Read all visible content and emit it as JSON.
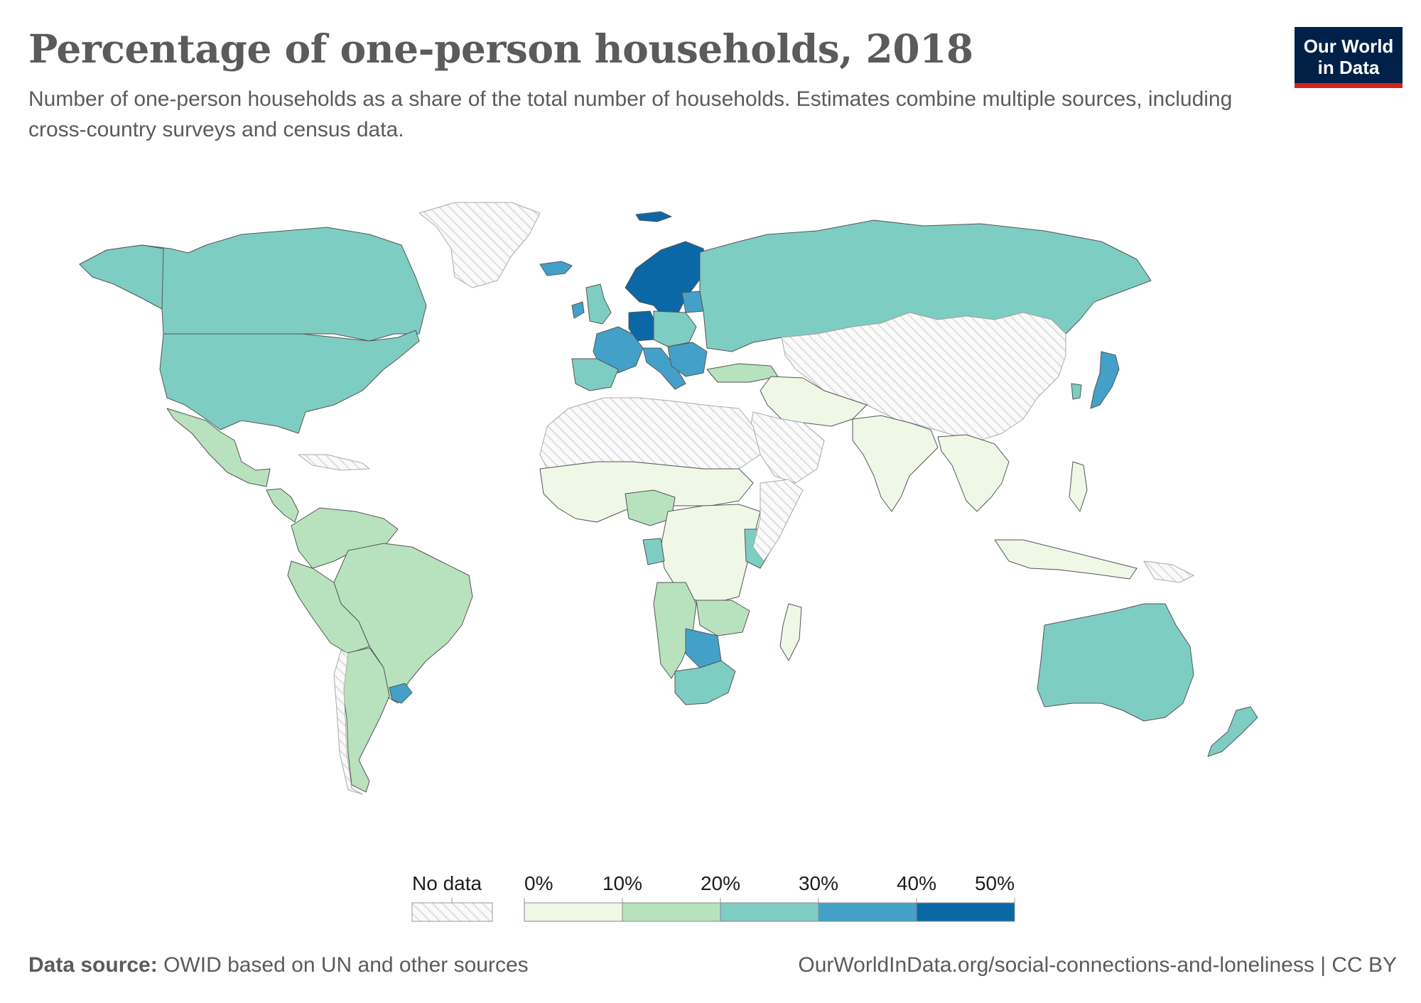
{
  "title": "Percentage of one-person households, 2018",
  "subtitle": "Number of one-person households as a share of the total number of households. Estimates combine multiple sources, including cross-country surveys and census data.",
  "logo": {
    "line1": "Our World",
    "line2": "in Data"
  },
  "legend": {
    "no_data_label": "No data",
    "ticks": [
      "0%",
      "10%",
      "20%",
      "30%",
      "40%",
      "50%"
    ],
    "bin_colors": [
      "#eff7e6",
      "#b7e2bd",
      "#7dcdc3",
      "#43a1c9",
      "#0a68a6"
    ],
    "no_data_color": "#ececec"
  },
  "footer": {
    "source_label": "Data source:",
    "source_text": "OWID based on UN and other sources",
    "url_text": "OurWorldInData.org/social-connections-and-loneliness",
    "license_text": "| CC BY"
  },
  "chart_data": {
    "type": "choropleth",
    "year": 2018,
    "unit": "%",
    "bins": [
      [
        0,
        10
      ],
      [
        10,
        20
      ],
      [
        20,
        30
      ],
      [
        30,
        40
      ],
      [
        40,
        50
      ]
    ],
    "regions": [
      {
        "name": "Canada",
        "bin": 2
      },
      {
        "name": "United States",
        "bin": 2
      },
      {
        "name": "Alaska",
        "bin": 2
      },
      {
        "name": "Greenland",
        "bin": null
      },
      {
        "name": "Mexico",
        "bin": 1
      },
      {
        "name": "Central America",
        "bin": 1
      },
      {
        "name": "Caribbean",
        "bin": null
      },
      {
        "name": "Colombia/Venezuela",
        "bin": 1
      },
      {
        "name": "Brazil",
        "bin": 1
      },
      {
        "name": "Peru/Bolivia",
        "bin": 1
      },
      {
        "name": "Argentina",
        "bin": 1
      },
      {
        "name": "Chile",
        "bin": null
      },
      {
        "name": "Uruguay",
        "bin": 3
      },
      {
        "name": "Iceland",
        "bin": 3
      },
      {
        "name": "Norway/Sweden/Finland",
        "bin": 4
      },
      {
        "name": "Svalbard",
        "bin": 4
      },
      {
        "name": "Germany",
        "bin": 4
      },
      {
        "name": "France",
        "bin": 3
      },
      {
        "name": "United Kingdom",
        "bin": 2
      },
      {
        "name": "Ireland",
        "bin": 3
      },
      {
        "name": "Spain/Portugal",
        "bin": 2
      },
      {
        "name": "Italy",
        "bin": 3
      },
      {
        "name": "Poland/Central Europe",
        "bin": 2
      },
      {
        "name": "Baltics",
        "bin": 3
      },
      {
        "name": "Balkans",
        "bin": 3
      },
      {
        "name": "Turkey",
        "bin": 1
      },
      {
        "name": "Russia",
        "bin": 2
      },
      {
        "name": "Japan",
        "bin": 3
      },
      {
        "name": "South Korea",
        "bin": 2
      },
      {
        "name": "China/Mongolia/Central Asia",
        "bin": null
      },
      {
        "name": "India/South Asia",
        "bin": 0
      },
      {
        "name": "Middle East",
        "bin": 0
      },
      {
        "name": "Arabia",
        "bin": null
      },
      {
        "name": "Southeast Asia",
        "bin": 0
      },
      {
        "name": "Indonesia",
        "bin": 0
      },
      {
        "name": "Philippines",
        "bin": 0
      },
      {
        "name": "North Africa",
        "bin": null
      },
      {
        "name": "Sahel/West Africa",
        "bin": 0
      },
      {
        "name": "Nigeria",
        "bin": 1
      },
      {
        "name": "Central Africa",
        "bin": 0
      },
      {
        "name": "Gabon",
        "bin": 2
      },
      {
        "name": "Kenya",
        "bin": 2
      },
      {
        "name": "Angola/Namibia",
        "bin": 1
      },
      {
        "name": "Zimbabwe/Zambia",
        "bin": 1
      },
      {
        "name": "South Africa",
        "bin": 2
      },
      {
        "name": "Botswana",
        "bin": 3
      },
      {
        "name": "Madagascar",
        "bin": 0
      },
      {
        "name": "Somalia/Horn",
        "bin": null
      },
      {
        "name": "Australia",
        "bin": 2
      },
      {
        "name": "New Zealand",
        "bin": 2
      },
      {
        "name": "Papua New Guinea",
        "bin": null
      }
    ]
  }
}
